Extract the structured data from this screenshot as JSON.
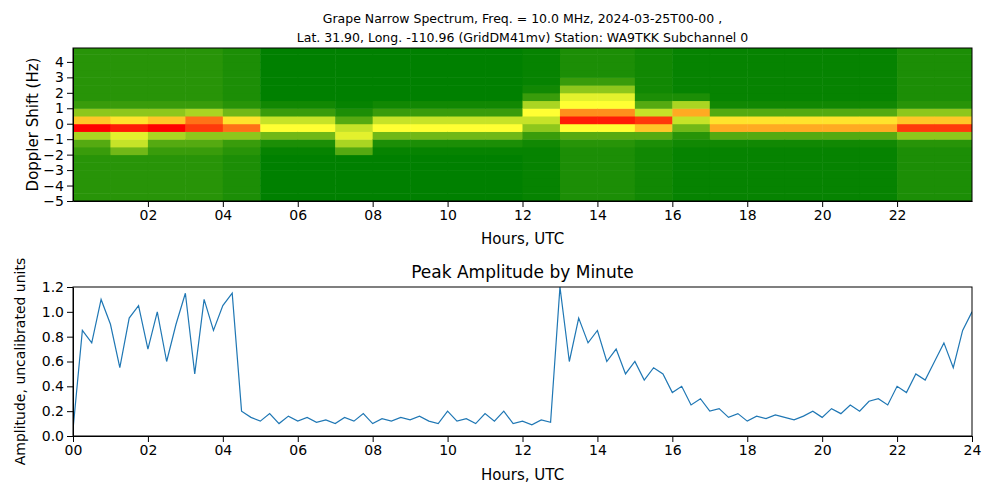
{
  "chart_data": [
    {
      "type": "heatmap",
      "title": "Grape Narrow Spectrum, Freq. = 10.0 MHz, 2024-03-25T00-00 ,",
      "subtitle": "Lat. 31.90, Long. -110.96 (GridDM41mv) Station: WA9TKK Subchannel 0",
      "x_label": "Hours, UTC",
      "y_label": "Doppler Shift (Hz)",
      "x_bins": [
        0,
        1,
        2,
        3,
        4,
        5,
        6,
        7,
        8,
        9,
        10,
        11,
        12,
        13,
        14,
        15,
        16,
        17,
        18,
        19,
        20,
        21,
        22,
        23,
        24
      ],
      "y_bins": [
        -5,
        -4.5,
        -4,
        -3.5,
        -3,
        -2.5,
        -2,
        -1.5,
        -1,
        -0.5,
        0,
        0.5,
        1,
        1.5,
        2,
        2.5,
        3,
        3.5,
        4,
        4.5,
        5
      ],
      "cells": [
        [
          0.12,
          0.12,
          0.12,
          0.12,
          0.12,
          0.12,
          0.15,
          0.2,
          0.35,
          0.95,
          0.6,
          0.3,
          0.15,
          0.12,
          0.12,
          0.12,
          0.12,
          0.12,
          0.12,
          0.12
        ],
        [
          0.12,
          0.12,
          0.12,
          0.12,
          0.12,
          0.12,
          0.25,
          0.4,
          0.45,
          0.9,
          0.55,
          0.3,
          0.15,
          0.12,
          0.12,
          0.12,
          0.12,
          0.12,
          0.12,
          0.12
        ],
        [
          0.12,
          0.12,
          0.12,
          0.12,
          0.12,
          0.12,
          0.15,
          0.2,
          0.35,
          0.95,
          0.6,
          0.3,
          0.15,
          0.12,
          0.12,
          0.12,
          0.12,
          0.12,
          0.12,
          0.12
        ],
        [
          0.12,
          0.12,
          0.12,
          0.12,
          0.12,
          0.12,
          0.15,
          0.2,
          0.3,
          0.85,
          0.75,
          0.35,
          0.15,
          0.12,
          0.12,
          0.12,
          0.12,
          0.12,
          0.12,
          0.12
        ],
        [
          0.1,
          0.1,
          0.1,
          0.1,
          0.1,
          0.1,
          0.12,
          0.15,
          0.3,
          0.75,
          0.55,
          0.25,
          0.12,
          0.1,
          0.1,
          0.1,
          0.1,
          0.1,
          0.1,
          0.1
        ],
        [
          0.05,
          0.05,
          0.05,
          0.05,
          0.05,
          0.05,
          0.06,
          0.1,
          0.25,
          0.5,
          0.4,
          0.15,
          0.08,
          0.05,
          0.05,
          0.05,
          0.05,
          0.05,
          0.05,
          0.05
        ],
        [
          0.05,
          0.05,
          0.05,
          0.05,
          0.05,
          0.05,
          0.06,
          0.1,
          0.25,
          0.5,
          0.4,
          0.15,
          0.08,
          0.05,
          0.05,
          0.05,
          0.05,
          0.05,
          0.05,
          0.05
        ],
        [
          0.05,
          0.05,
          0.05,
          0.05,
          0.05,
          0.05,
          0.2,
          0.35,
          0.45,
          0.4,
          0.2,
          0.1,
          0.06,
          0.05,
          0.05,
          0.05,
          0.05,
          0.05,
          0.05,
          0.05
        ],
        [
          0.05,
          0.05,
          0.05,
          0.05,
          0.05,
          0.05,
          0.06,
          0.1,
          0.25,
          0.5,
          0.4,
          0.15,
          0.08,
          0.05,
          0.05,
          0.05,
          0.05,
          0.05,
          0.05,
          0.05
        ],
        [
          0.05,
          0.05,
          0.05,
          0.05,
          0.05,
          0.05,
          0.06,
          0.1,
          0.25,
          0.5,
          0.4,
          0.15,
          0.08,
          0.05,
          0.05,
          0.05,
          0.05,
          0.05,
          0.05,
          0.05
        ],
        [
          0.05,
          0.05,
          0.05,
          0.05,
          0.05,
          0.05,
          0.06,
          0.1,
          0.25,
          0.5,
          0.4,
          0.15,
          0.08,
          0.05,
          0.05,
          0.05,
          0.05,
          0.05,
          0.05,
          0.05
        ],
        [
          0.05,
          0.05,
          0.05,
          0.05,
          0.05,
          0.05,
          0.06,
          0.1,
          0.25,
          0.5,
          0.4,
          0.15,
          0.08,
          0.05,
          0.05,
          0.05,
          0.05,
          0.05,
          0.05,
          0.05
        ],
        [
          0.06,
          0.06,
          0.06,
          0.06,
          0.06,
          0.06,
          0.06,
          0.08,
          0.15,
          0.3,
          0.4,
          0.5,
          0.35,
          0.15,
          0.08,
          0.06,
          0.06,
          0.06,
          0.06,
          0.06
        ],
        [
          0.1,
          0.1,
          0.1,
          0.1,
          0.1,
          0.1,
          0.1,
          0.12,
          0.2,
          0.5,
          0.9,
          0.7,
          0.5,
          0.45,
          0.3,
          0.15,
          0.1,
          0.1,
          0.1,
          0.1
        ],
        [
          0.1,
          0.1,
          0.1,
          0.1,
          0.1,
          0.1,
          0.1,
          0.12,
          0.2,
          0.5,
          0.9,
          0.7,
          0.5,
          0.45,
          0.3,
          0.15,
          0.1,
          0.1,
          0.1,
          0.1
        ],
        [
          0.08,
          0.08,
          0.08,
          0.08,
          0.08,
          0.08,
          0.08,
          0.1,
          0.2,
          0.6,
          0.85,
          0.4,
          0.2,
          0.1,
          0.08,
          0.08,
          0.08,
          0.08,
          0.08,
          0.08
        ],
        [
          0.06,
          0.06,
          0.06,
          0.06,
          0.06,
          0.06,
          0.06,
          0.08,
          0.12,
          0.25,
          0.4,
          0.65,
          0.35,
          0.1,
          0.06,
          0.06,
          0.06,
          0.06,
          0.06,
          0.06
        ],
        [
          0.06,
          0.06,
          0.06,
          0.06,
          0.06,
          0.06,
          0.06,
          0.08,
          0.2,
          0.65,
          0.55,
          0.2,
          0.08,
          0.06,
          0.06,
          0.06,
          0.06,
          0.06,
          0.06,
          0.06
        ],
        [
          0.06,
          0.06,
          0.06,
          0.06,
          0.06,
          0.06,
          0.06,
          0.08,
          0.2,
          0.65,
          0.55,
          0.2,
          0.08,
          0.06,
          0.06,
          0.06,
          0.06,
          0.06,
          0.06,
          0.06
        ],
        [
          0.06,
          0.06,
          0.06,
          0.06,
          0.06,
          0.06,
          0.06,
          0.08,
          0.2,
          0.65,
          0.55,
          0.2,
          0.08,
          0.06,
          0.06,
          0.06,
          0.06,
          0.06,
          0.06,
          0.06
        ],
        [
          0.06,
          0.06,
          0.06,
          0.06,
          0.06,
          0.06,
          0.06,
          0.08,
          0.2,
          0.65,
          0.55,
          0.2,
          0.08,
          0.06,
          0.06,
          0.06,
          0.06,
          0.06,
          0.06,
          0.06
        ],
        [
          0.06,
          0.06,
          0.06,
          0.06,
          0.06,
          0.06,
          0.06,
          0.08,
          0.2,
          0.65,
          0.55,
          0.2,
          0.08,
          0.06,
          0.06,
          0.06,
          0.06,
          0.06,
          0.06,
          0.06
        ],
        [
          0.1,
          0.1,
          0.1,
          0.1,
          0.1,
          0.1,
          0.1,
          0.12,
          0.3,
          0.85,
          0.6,
          0.3,
          0.12,
          0.1,
          0.1,
          0.1,
          0.1,
          0.1,
          0.1,
          0.1
        ],
        [
          0.1,
          0.1,
          0.1,
          0.1,
          0.1,
          0.1,
          0.1,
          0.12,
          0.3,
          0.85,
          0.6,
          0.3,
          0.12,
          0.1,
          0.1,
          0.1,
          0.1,
          0.1,
          0.1,
          0.1
        ]
      ],
      "xlim": [
        0,
        24
      ],
      "ylim": [
        -5,
        4.9
      ],
      "xticks": [
        {
          "value": 2,
          "label": "02"
        },
        {
          "value": 4,
          "label": "04"
        },
        {
          "value": 6,
          "label": "06"
        },
        {
          "value": 8,
          "label": "08"
        },
        10,
        12,
        14,
        16,
        18,
        20,
        22
      ],
      "yticks": [
        {
          "value": -5,
          "label": "−5"
        },
        {
          "value": -4,
          "label": "−4"
        },
        {
          "value": -3,
          "label": "−3"
        },
        {
          "value": -2,
          "label": "−2"
        },
        {
          "value": -1,
          "label": "−1"
        },
        0,
        1,
        2,
        3,
        4
      ]
    },
    {
      "type": "line",
      "title": "Peak Amplitude by Minute",
      "x_label": "Hours, UTC",
      "y_label": "Amplitude, uncalibrated units",
      "color": "#1f77b4",
      "x": [
        0,
        0.25,
        0.5,
        0.75,
        1,
        1.25,
        1.5,
        1.75,
        2,
        2.25,
        2.5,
        2.75,
        3,
        3.25,
        3.5,
        3.75,
        4,
        4.25,
        4.5,
        4.75,
        5,
        5.25,
        5.5,
        5.75,
        6,
        6.25,
        6.5,
        6.75,
        7,
        7.25,
        7.5,
        7.75,
        8,
        8.25,
        8.5,
        8.75,
        9,
        9.25,
        9.5,
        9.75,
        10,
        10.25,
        10.5,
        10.75,
        11,
        11.25,
        11.5,
        11.75,
        12,
        12.25,
        12.5,
        12.75,
        13,
        13.25,
        13.5,
        13.75,
        14,
        14.25,
        14.5,
        14.75,
        15,
        15.25,
        15.5,
        15.75,
        16,
        16.25,
        16.5,
        16.75,
        17,
        17.25,
        17.5,
        17.75,
        18,
        18.25,
        18.5,
        18.75,
        19,
        19.25,
        19.5,
        19.75,
        20,
        20.25,
        20.5,
        20.75,
        21,
        21.25,
        21.5,
        21.75,
        22,
        22.25,
        22.5,
        22.75,
        23,
        23.25,
        23.5,
        23.75,
        24
      ],
      "values": [
        0.05,
        0.85,
        0.75,
        1.1,
        0.9,
        0.55,
        0.95,
        1.05,
        0.7,
        1.0,
        0.6,
        0.9,
        1.15,
        0.5,
        1.1,
        0.85,
        1.05,
        1.15,
        0.2,
        0.15,
        0.12,
        0.18,
        0.1,
        0.16,
        0.12,
        0.15,
        0.11,
        0.13,
        0.1,
        0.15,
        0.12,
        0.18,
        0.1,
        0.14,
        0.12,
        0.15,
        0.13,
        0.16,
        0.12,
        0.1,
        0.2,
        0.12,
        0.14,
        0.1,
        0.18,
        0.12,
        0.2,
        0.1,
        0.12,
        0.09,
        0.13,
        0.11,
        1.2,
        0.6,
        0.95,
        0.75,
        0.85,
        0.6,
        0.7,
        0.5,
        0.6,
        0.45,
        0.55,
        0.5,
        0.35,
        0.4,
        0.25,
        0.3,
        0.2,
        0.22,
        0.15,
        0.18,
        0.12,
        0.16,
        0.14,
        0.17,
        0.15,
        0.13,
        0.16,
        0.2,
        0.15,
        0.22,
        0.18,
        0.25,
        0.2,
        0.28,
        0.3,
        0.25,
        0.4,
        0.35,
        0.5,
        0.45,
        0.6,
        0.75,
        0.55,
        0.85,
        1.0
      ],
      "xlim": [
        0,
        24
      ],
      "ylim": [
        0,
        1.2
      ],
      "xticks": [
        {
          "value": 0,
          "label": "00"
        },
        {
          "value": 2,
          "label": "02"
        },
        {
          "value": 4,
          "label": "04"
        },
        {
          "value": 6,
          "label": "06"
        },
        {
          "value": 8,
          "label": "08"
        },
        10,
        12,
        14,
        16,
        18,
        20,
        22,
        24
      ],
      "yticks": [
        {
          "value": 0,
          "label": "0.0"
        },
        {
          "value": 0.2,
          "label": "0.2"
        },
        {
          "value": 0.4,
          "label": "0.4"
        },
        {
          "value": 0.6,
          "label": "0.6"
        },
        {
          "value": 0.8,
          "label": "0.8"
        },
        {
          "value": 1,
          "label": "1.0"
        },
        {
          "value": 1.2,
          "label": "1.2"
        }
      ]
    }
  ]
}
